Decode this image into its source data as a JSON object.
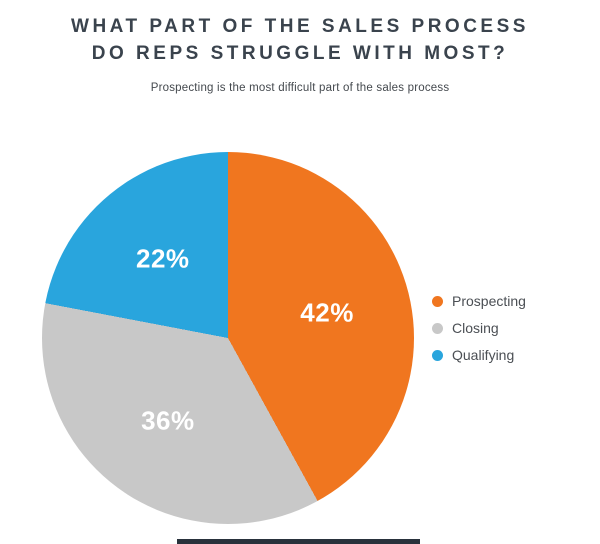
{
  "header": {
    "title_line1": "WHAT PART OF THE SALES PROCESS",
    "title_line2": "DO REPS STRUGGLE WITH MOST?",
    "subtitle": "Prospecting is the most difficult part of the sales process"
  },
  "chart_data": {
    "type": "pie",
    "title": "WHAT PART OF THE SALES PROCESS DO REPS STRUGGLE WITH MOST?",
    "subtitle": "Prospecting is the most difficult part of the sales process",
    "start_angle_deg": 0,
    "direction": "clockwise",
    "legend_position": "right",
    "labels_inside": true,
    "slices": [
      {
        "label": "Prospecting",
        "value": 42,
        "display": "42%",
        "color": "#F0761F"
      },
      {
        "label": "Closing",
        "value": 36,
        "display": "36%",
        "color": "#C8C8C8"
      },
      {
        "label": "Qualifying",
        "value": 22,
        "display": "22%",
        "color": "#29A5DD"
      }
    ]
  }
}
